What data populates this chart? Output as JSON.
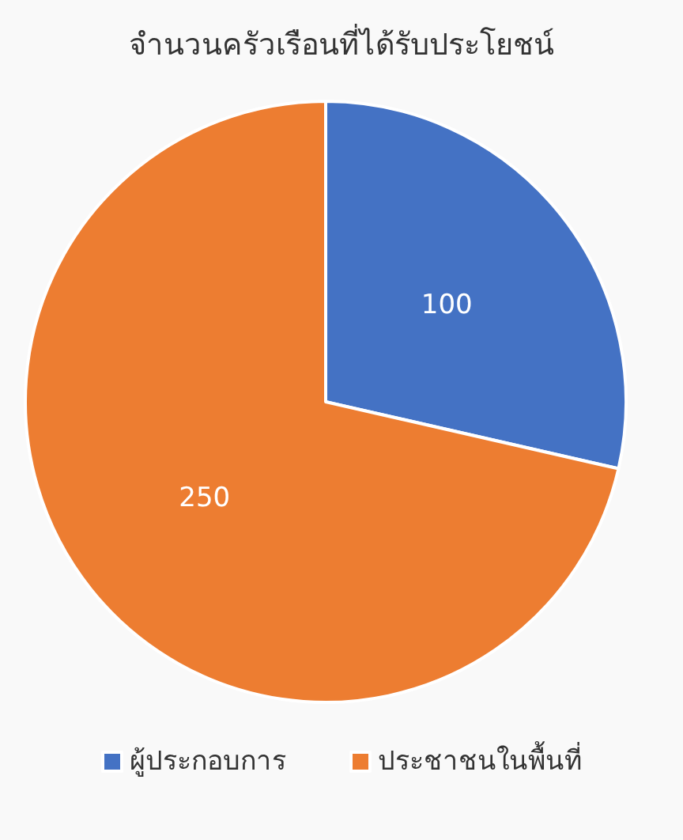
{
  "chart_data": {
    "type": "pie",
    "title": "จำนวนครัวเรือนที่ได้รับประโยชน์",
    "categories": [
      "ผู้ประกอบการ",
      "ประชาชนในพื้นที่"
    ],
    "values": [
      100,
      250
    ],
    "colors": [
      "#4472c4",
      "#ed7d31"
    ],
    "data_labels": true,
    "legend": "bottom"
  }
}
